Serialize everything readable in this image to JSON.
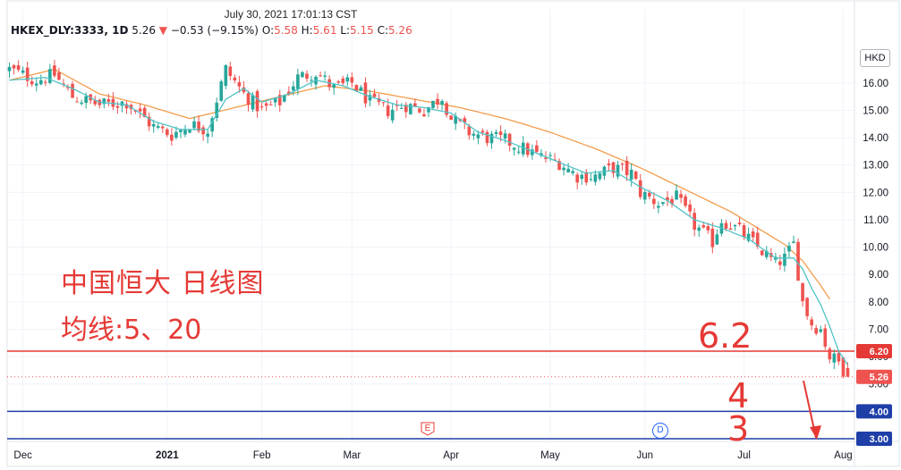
{
  "header": {
    "timestamp": "July 30, 2021 17:01:13 CST",
    "symbol": "HKEX_DLY:3333, 1D",
    "last": "5.26",
    "change": "−0.53 (−9.15%)",
    "o_label": "O:",
    "o": "5.58",
    "h_label": "H:",
    "h": "5.61",
    "l_label": "L:",
    "l": "5.15",
    "c_label": "C:",
    "c": "5.26"
  },
  "annotations": {
    "title": "中国恒大 日线图",
    "ma": "均线:5、20",
    "level_62": "6.2",
    "level_4": "4",
    "level_3": "3"
  },
  "currency": "HKD",
  "events": {
    "earnings": "E",
    "dividend": "D"
  },
  "colors": {
    "up": "#26a69a",
    "down": "#ef5350",
    "ma5": "#4fc3c7",
    "ma20": "#f39c4a",
    "red_line": "#e53935",
    "blue_line": "#1f3fa8"
  },
  "chart_data": {
    "type": "candlestick",
    "symbol": "HKEX_DLY:3333",
    "interval": "1D",
    "ylim": [
      2.9,
      17.4
    ],
    "y_ticks": [
      "16.00",
      "15.00",
      "14.00",
      "13.00",
      "12.00",
      "11.00",
      "10.00",
      "9.00",
      "8.00",
      "7.00",
      "6.00",
      "5.00"
    ],
    "x_labels": [
      "Dec",
      "2021",
      "Feb",
      "Mar",
      "Apr",
      "May",
      "Jun",
      "Jul",
      "Aug"
    ],
    "x_label_index": [
      3,
      35,
      56,
      76,
      98,
      120,
      141,
      163,
      185
    ],
    "close_path": [
      [
        0,
        16.5
      ],
      [
        6,
        16.1
      ],
      [
        10,
        16.3
      ],
      [
        14,
        15.5
      ],
      [
        20,
        15.2
      ],
      [
        26,
        15.3
      ],
      [
        32,
        14.4
      ],
      [
        36,
        14.1
      ],
      [
        40,
        14.5
      ],
      [
        44,
        14.3
      ],
      [
        48,
        16.5
      ],
      [
        52,
        15.6
      ],
      [
        56,
        15.0
      ],
      [
        60,
        15.3
      ],
      [
        64,
        16.2
      ],
      [
        68,
        16.4
      ],
      [
        72,
        15.8
      ],
      [
        76,
        16.0
      ],
      [
        80,
        15.3
      ],
      [
        84,
        15.0
      ],
      [
        88,
        15.2
      ],
      [
        92,
        15.0
      ],
      [
        96,
        15.5
      ],
      [
        98,
        14.7
      ],
      [
        102,
        14.2
      ],
      [
        106,
        14.0
      ],
      [
        110,
        13.9
      ],
      [
        114,
        13.6
      ],
      [
        118,
        13.3
      ],
      [
        122,
        13.1
      ],
      [
        126,
        12.6
      ],
      [
        130,
        12.6
      ],
      [
        134,
        12.9
      ],
      [
        138,
        12.7
      ],
      [
        140,
        12.0
      ],
      [
        144,
        11.6
      ],
      [
        148,
        11.8
      ],
      [
        152,
        10.8
      ],
      [
        156,
        10.2
      ],
      [
        158,
        11.0
      ],
      [
        162,
        10.6
      ],
      [
        166,
        10.0
      ],
      [
        170,
        9.4
      ],
      [
        172,
        9.6
      ],
      [
        174,
        10.1
      ],
      [
        176,
        8.0
      ],
      [
        178,
        7.2
      ],
      [
        180,
        7.0
      ],
      [
        182,
        6.0
      ],
      [
        184,
        5.8
      ],
      [
        186,
        5.26
      ]
    ],
    "ma5": [
      [
        0,
        16.1
      ],
      [
        8,
        16.2
      ],
      [
        14,
        15.8
      ],
      [
        20,
        15.3
      ],
      [
        26,
        15.2
      ],
      [
        32,
        14.6
      ],
      [
        38,
        14.3
      ],
      [
        44,
        14.3
      ],
      [
        48,
        15.4
      ],
      [
        52,
        15.8
      ],
      [
        56,
        15.3
      ],
      [
        62,
        15.6
      ],
      [
        68,
        16.1
      ],
      [
        74,
        15.9
      ],
      [
        80,
        15.5
      ],
      [
        86,
        15.2
      ],
      [
        92,
        15.1
      ],
      [
        98,
        14.9
      ],
      [
        104,
        14.2
      ],
      [
        110,
        13.9
      ],
      [
        116,
        13.5
      ],
      [
        122,
        13.1
      ],
      [
        128,
        12.7
      ],
      [
        134,
        12.8
      ],
      [
        140,
        12.2
      ],
      [
        146,
        11.7
      ],
      [
        152,
        11.0
      ],
      [
        158,
        10.7
      ],
      [
        164,
        10.3
      ],
      [
        170,
        9.6
      ],
      [
        174,
        9.6
      ],
      [
        176,
        9.2
      ],
      [
        178,
        8.5
      ],
      [
        180,
        7.9
      ],
      [
        182,
        7.1
      ],
      [
        184,
        6.2
      ],
      [
        186,
        5.7
      ]
    ],
    "ma20": [
      [
        0,
        16.1
      ],
      [
        10,
        16.5
      ],
      [
        20,
        15.6
      ],
      [
        30,
        15.2
      ],
      [
        40,
        14.7
      ],
      [
        50,
        15.1
      ],
      [
        60,
        15.5
      ],
      [
        70,
        15.9
      ],
      [
        80,
        15.7
      ],
      [
        90,
        15.4
      ],
      [
        100,
        15.1
      ],
      [
        110,
        14.7
      ],
      [
        120,
        14.2
      ],
      [
        130,
        13.6
      ],
      [
        140,
        12.9
      ],
      [
        150,
        12.1
      ],
      [
        160,
        11.3
      ],
      [
        166,
        10.7
      ],
      [
        172,
        10.1
      ],
      [
        176,
        9.5
      ],
      [
        180,
        8.6
      ],
      [
        182,
        8.1
      ]
    ],
    "horizontal_lines": [
      {
        "value": 6.2,
        "label": "6.20",
        "color": "#e53935"
      },
      {
        "value": 4.0,
        "label": "4.00",
        "color": "#1f3fa8"
      },
      {
        "value": 3.0,
        "label": "3.00",
        "color": "#1f3fa8"
      }
    ],
    "last_price": {
      "value": 5.26,
      "label": "5.26"
    }
  }
}
